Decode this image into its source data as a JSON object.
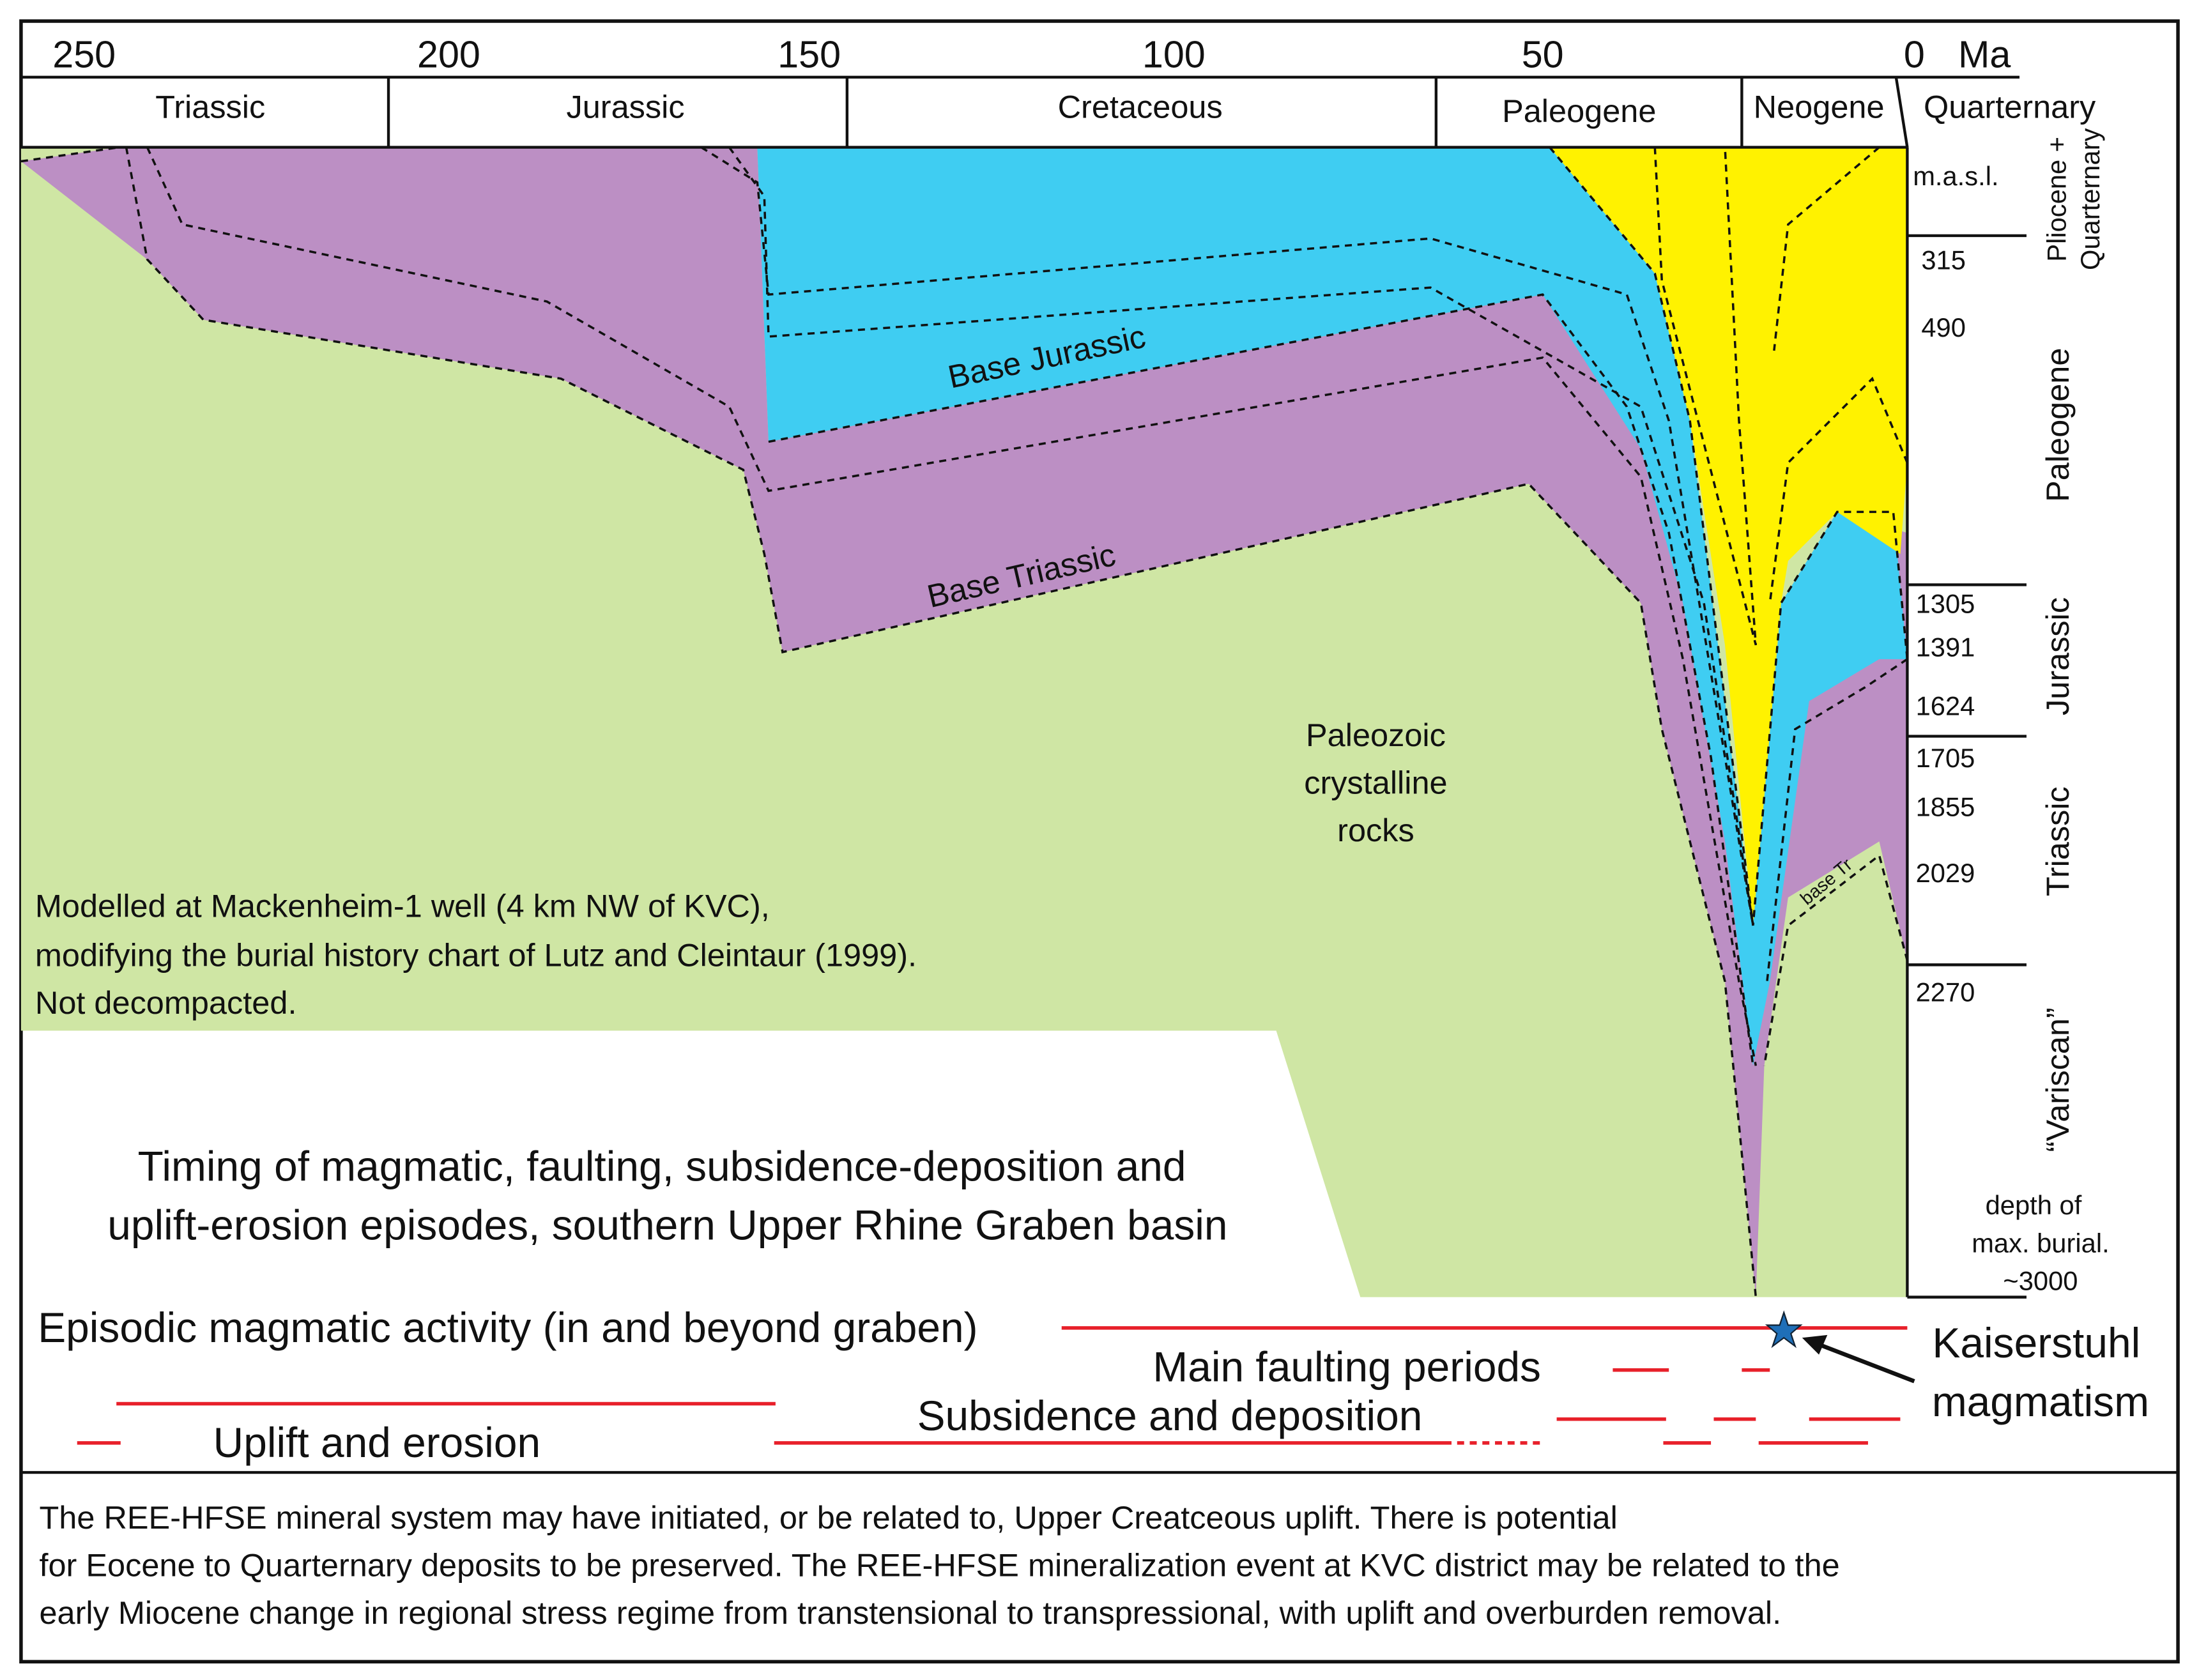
{
  "time_axis": {
    "ticks": [
      "250",
      "200",
      "150",
      "100",
      "50",
      "0"
    ],
    "unit": "Ma"
  },
  "periods": [
    "Triassic",
    "Jurassic",
    "Cretaceous",
    "Paleogene",
    "Neogene",
    "Quarternary"
  ],
  "depth_axis": {
    "unit": "m.a.s.l.",
    "labels": [
      "315",
      "490",
      "1305",
      "1391",
      "1624",
      "1705",
      "1855",
      "2029",
      "2270"
    ],
    "note": [
      "depth  of",
      "max. burial.",
      "~3000"
    ]
  },
  "depth_intervals": [
    [
      "Pliocene +",
      "Quarternary"
    ],
    "Paleogene",
    "Jurassic",
    "Triassic",
    "“Variscan”"
  ],
  "layer_labels": {
    "base_jurassic": "Base Jurassic",
    "base_triassic": "Base Triassic",
    "base_tr": "base Tr"
  },
  "rock_label": [
    "Paleozoic",
    "crystalline",
    "rocks"
  ],
  "model_note": [
    "Modelled at Mackenheim-1 well (4 km NW of KVC),",
    "modifying the burial history chart of Lutz and Cleintaur (1999).",
    "Not decompacted."
  ],
  "title": [
    "Timing of magmatic, faulting, subsidence-deposition and",
    "uplift-erosion episodes, southern Upper Rhine Graben basin"
  ],
  "events": {
    "magmatic": "Episodic magmatic activity (in and beyond graben)",
    "faulting": "Main faulting periods",
    "subsidence": "Subsidence and deposition",
    "uplift": "Uplift and erosion"
  },
  "kaiserstuhl": [
    "Kaiserstuhl",
    "magmatism"
  ],
  "footer": [
    "The REE-HFSE mineral system may have initiated, or be related to, Upper Creatceous uplift. There is potential",
    "for Eocene to Quarternary deposits to be preserved. The REE-HFSE mineralization event at KVC district may be related to the",
    "early Miocene change in regional stress regime from transtensional to transpressional, with uplift and overburden removal."
  ]
}
